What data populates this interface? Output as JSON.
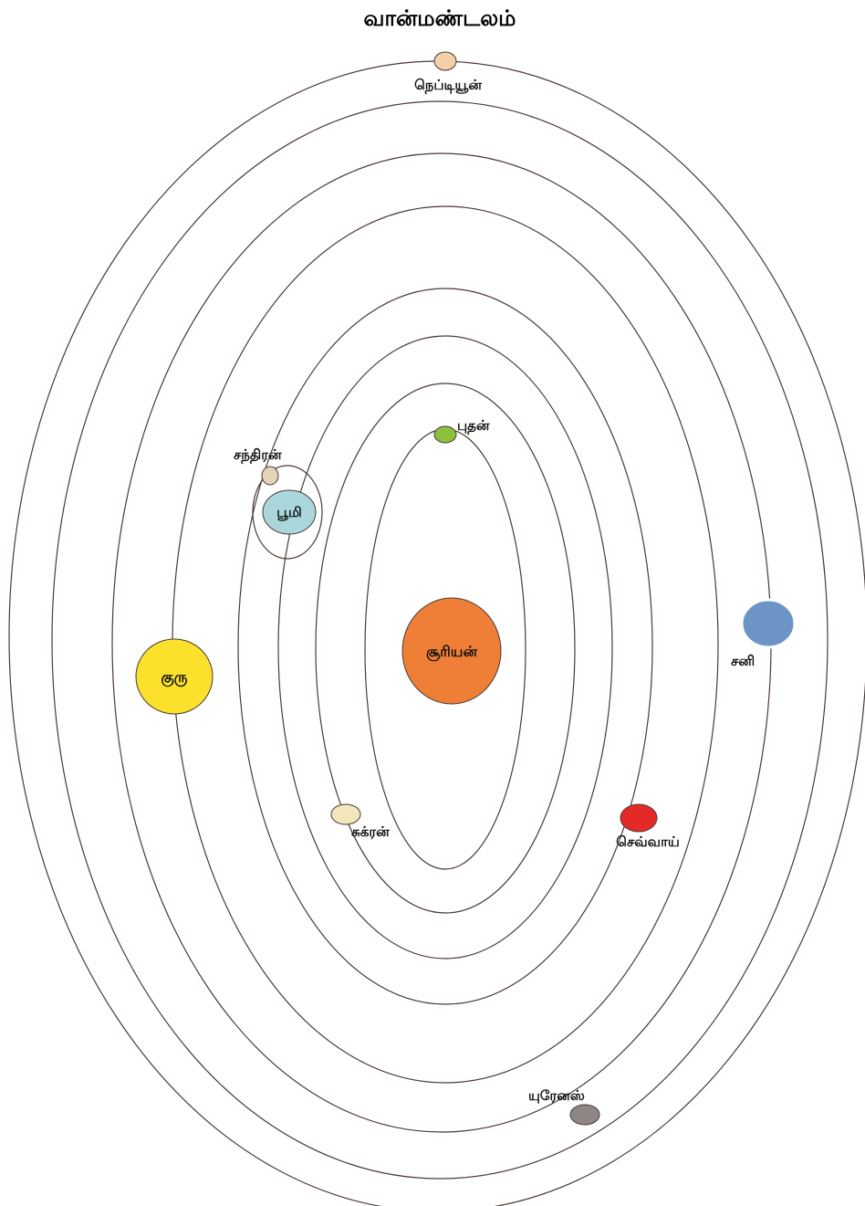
{
  "title": "வான்மண்டலம்",
  "bodies": {
    "sun": {
      "label": "சூரியன்",
      "color": "#ef7f37"
    },
    "mercury": {
      "label": "புதன்",
      "color": "#8dc03f"
    },
    "venus": {
      "label": "சுக்ரன்",
      "color": "#f2e6bd"
    },
    "earth": {
      "label": "பூமி",
      "color": "#a9d7dc"
    },
    "moon": {
      "label": "சந்திரன்",
      "color": "#e4d4b6"
    },
    "mars": {
      "label": "செவ்வாய்",
      "color": "#e42a28"
    },
    "jupiter": {
      "label": "குரு",
      "color": "#fbe12c"
    },
    "saturn": {
      "label": "சனி",
      "color": "#6c95c6"
    },
    "uranus": {
      "label": "யுரேனஸ்",
      "color": "#8d8682"
    },
    "neptune": {
      "label": "நெப்டியூன்",
      "color": "#f4d0a6"
    }
  },
  "colors": {
    "orbit": "#4a3a35",
    "outline": "#4a3a35"
  }
}
